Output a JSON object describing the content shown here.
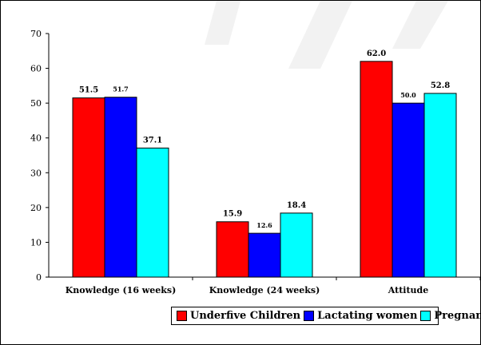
{
  "chart_data": {
    "type": "bar",
    "title": "",
    "xlabel": "",
    "ylabel": "",
    "ylim": [
      0,
      70
    ],
    "yticks": [
      0,
      10,
      20,
      30,
      40,
      50,
      60,
      70
    ],
    "grid": false,
    "legend_position": "bottom",
    "categories": [
      "Knowledge (16 weeks)",
      "Knowledge (24 weeks)",
      "Attitude"
    ],
    "series": [
      {
        "name": "Underfive Children",
        "color": "#ff0000",
        "values": [
          51.5,
          15.9,
          62.0
        ],
        "labels": [
          "51.5",
          "15.9",
          "62.0"
        ]
      },
      {
        "name": "Lactating women",
        "color": "#0000ff",
        "values": [
          51.7,
          12.6,
          50.0
        ],
        "labels": [
          "51.7",
          "12.6",
          "50.0"
        ]
      },
      {
        "name": "Pregnant women",
        "color": "#00ffff",
        "values": [
          37.1,
          18.4,
          52.8
        ],
        "labels": [
          "37.1",
          "18.4",
          "52.8"
        ]
      }
    ]
  }
}
